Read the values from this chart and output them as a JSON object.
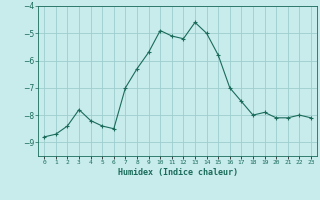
{
  "x": [
    0,
    1,
    2,
    3,
    4,
    5,
    6,
    7,
    8,
    9,
    10,
    11,
    12,
    13,
    14,
    15,
    16,
    17,
    18,
    19,
    20,
    21,
    22,
    23
  ],
  "y": [
    -8.8,
    -8.7,
    -8.4,
    -7.8,
    -8.2,
    -8.4,
    -8.5,
    -7.0,
    -6.3,
    -5.7,
    -4.9,
    -5.1,
    -5.2,
    -4.6,
    -5.0,
    -5.8,
    -7.0,
    -7.5,
    -8.0,
    -7.9,
    -8.1,
    -8.1,
    -8.0,
    -8.1
  ],
  "line_color": "#1a6b5a",
  "marker": "+",
  "bg_color": "#c8ecec",
  "grid_color": "#9ecece",
  "axis_color": "#1a6b5a",
  "xlabel": "Humidex (Indice chaleur)",
  "ylim": [
    -9.5,
    -4.0
  ],
  "xlim": [
    -0.5,
    23.5
  ],
  "yticks": [
    -9,
    -8,
    -7,
    -6,
    -5,
    -4
  ],
  "xtick_labels": [
    "0",
    "1",
    "2",
    "3",
    "4",
    "5",
    "6",
    "7",
    "8",
    "9",
    "10",
    "11",
    "12",
    "13",
    "14",
    "15",
    "16",
    "17",
    "18",
    "19",
    "20",
    "21",
    "22",
    "23"
  ]
}
